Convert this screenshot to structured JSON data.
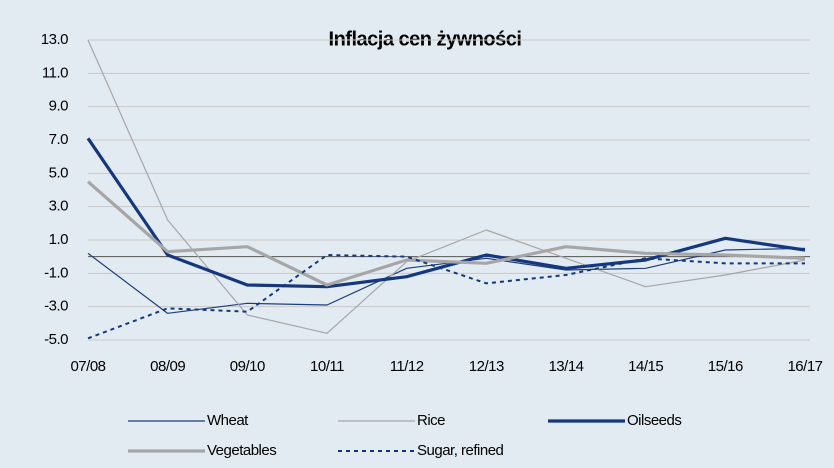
{
  "chart_data": {
    "type": "line",
    "title": "Inflacja cen żywności",
    "categories": [
      "07/08",
      "08/09",
      "09/10",
      "10/11",
      "11/12",
      "12/13",
      "13/14",
      "14/15",
      "15/16",
      "16/17"
    ],
    "series": [
      {
        "name": "Wheat",
        "color": "#1f3d7a",
        "width": 1.2,
        "dashed": false,
        "values": [
          0.2,
          -3.4,
          -2.8,
          -2.9,
          -0.7,
          -0.1,
          -0.8,
          -0.7,
          0.4,
          0.5
        ]
      },
      {
        "name": "Rice",
        "color": "#a6a6a6",
        "width": 1.2,
        "dashed": false,
        "values": [
          13.0,
          2.2,
          -3.5,
          -4.6,
          -0.3,
          1.6,
          -0.1,
          -1.8,
          -1.1,
          -0.2
        ]
      },
      {
        "name": "Oilseeds",
        "color": "#14377d",
        "width": 3.2,
        "dashed": false,
        "values": [
          7.1,
          0.1,
          -1.7,
          -1.8,
          -1.2,
          0.1,
          -0.7,
          -0.2,
          1.1,
          0.4
        ]
      },
      {
        "name": "Vegetables",
        "color": "#a6a6a6",
        "width": 3.2,
        "dashed": false,
        "values": [
          4.5,
          0.3,
          0.6,
          -1.7,
          -0.2,
          -0.4,
          0.6,
          0.2,
          0.1,
          -0.1
        ]
      },
      {
        "name": "Sugar, refined",
        "color": "#14377d",
        "width": 2,
        "dashed": true,
        "values": [
          -4.9,
          -3.1,
          -3.3,
          0.1,
          0.0,
          -1.6,
          -1.1,
          -0.1,
          -0.4,
          -0.4
        ]
      }
    ],
    "ylim": [
      -5,
      13
    ],
    "yticks": [
      {
        "value": 13,
        "label": "13.0"
      },
      {
        "value": 11,
        "label": "11.0"
      },
      {
        "value": 9,
        "label": "9.0"
      },
      {
        "value": 7,
        "label": "7.0"
      },
      {
        "value": 5,
        "label": "5.0"
      },
      {
        "value": 3,
        "label": "3.0"
      },
      {
        "value": 1,
        "label": "1.0"
      },
      {
        "value": -1,
        "label": "-1.0"
      },
      {
        "value": -3,
        "label": "-3.0"
      },
      {
        "value": -5,
        "label": "-5.0"
      }
    ],
    "grid": true
  }
}
